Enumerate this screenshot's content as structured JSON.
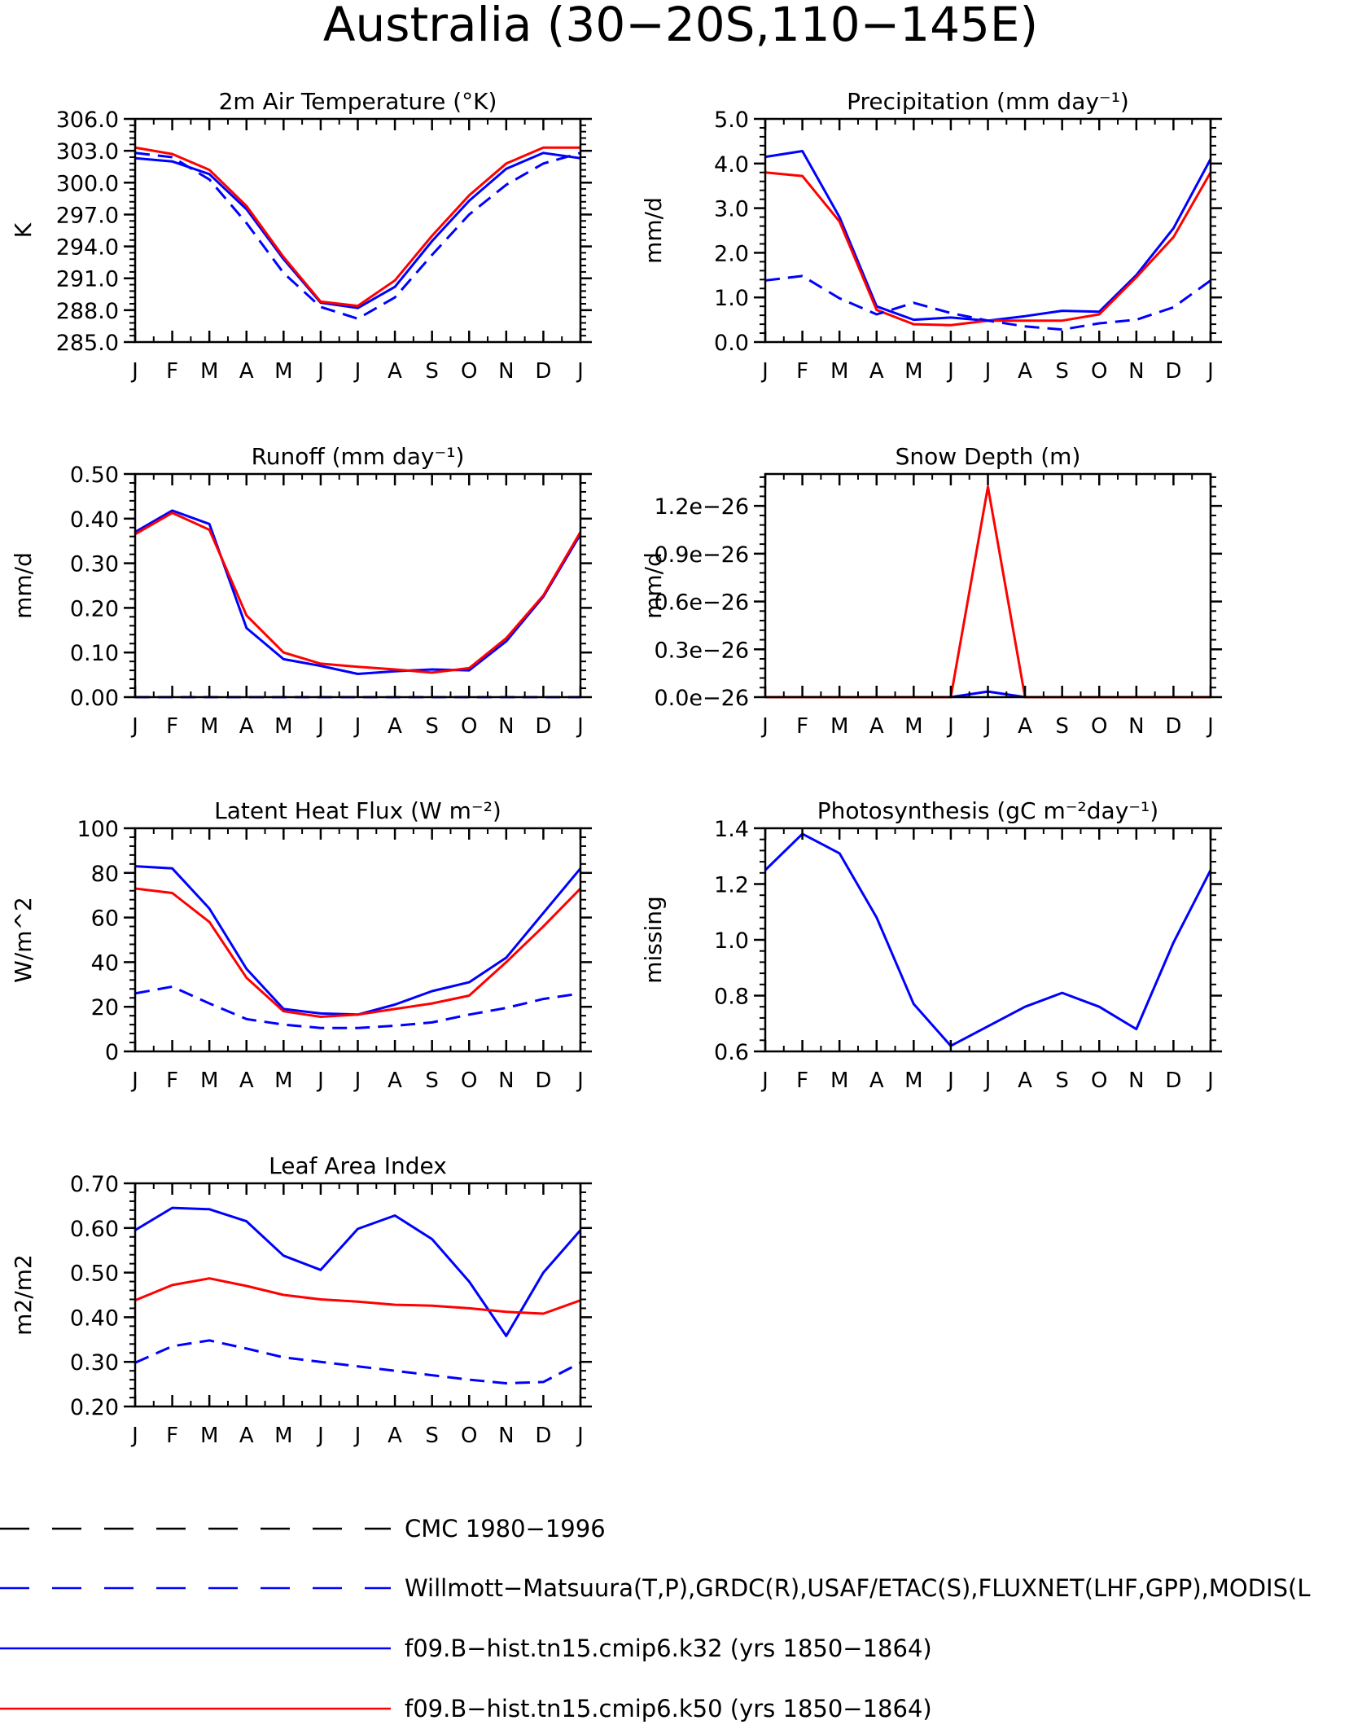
{
  "figure_title": "Australia (30−20S,110−145E)",
  "months": [
    "J",
    "F",
    "M",
    "A",
    "M",
    "J",
    "J",
    "A",
    "S",
    "O",
    "N",
    "D",
    "J"
  ],
  "colors": {
    "k32": "#0000ff",
    "k50": "#ff0000",
    "obs": "#0000ff",
    "cmc": "#000000"
  },
  "legend": [
    {
      "label": "CMC 1980−1996",
      "color": "#000000",
      "dash": true
    },
    {
      "label": "Willmott−Matsuura(T,P),GRDC(R),USAF/ETAC(S),FLUXNET(LHF,GPP),MODIS(L",
      "color": "#0000ff",
      "dash": true
    },
    {
      "label": "f09.B−hist.tn15.cmip6.k32 (yrs 1850−1864)",
      "color": "#0000ff",
      "dash": false
    },
    {
      "label": "f09.B−hist.tn15.cmip6.k50 (yrs 1850−1864)",
      "color": "#ff0000",
      "dash": false
    }
  ],
  "chart_data": [
    {
      "type": "line",
      "title": "2m Air Temperature (°K)",
      "ylabel": "K",
      "ylim": [
        285,
        306
      ],
      "yticks": [
        285,
        288,
        291,
        294,
        297,
        300,
        303,
        306
      ],
      "ytick_labels": [
        "285.0",
        "288.0",
        "291.0",
        "294.0",
        "297.0",
        "300.0",
        "303.0",
        "306.0"
      ],
      "series": [
        {
          "key": "k32",
          "values": [
            302.3,
            302.0,
            300.8,
            297.5,
            292.8,
            288.7,
            288.2,
            290.2,
            294.5,
            298.3,
            301.3,
            302.8,
            302.3
          ]
        },
        {
          "key": "k50",
          "values": [
            303.3,
            302.7,
            301.2,
            297.8,
            293.0,
            288.8,
            288.4,
            290.8,
            295.0,
            298.8,
            301.8,
            303.3,
            303.3
          ]
        },
        {
          "key": "obs",
          "values": [
            302.8,
            302.4,
            300.3,
            296.2,
            291.5,
            288.3,
            287.2,
            289.2,
            293.2,
            297.0,
            299.8,
            301.8,
            302.8
          ]
        }
      ]
    },
    {
      "type": "line",
      "title": "Precipitation (mm day⁻¹)",
      "ylabel": "mm/d",
      "ylim": [
        0,
        5
      ],
      "yticks": [
        0,
        1,
        2,
        3,
        4,
        5
      ],
      "ytick_labels": [
        "0.0",
        "1.0",
        "2.0",
        "3.0",
        "4.0",
        "5.0"
      ],
      "series": [
        {
          "key": "k32",
          "values": [
            4.15,
            4.28,
            2.8,
            0.8,
            0.5,
            0.55,
            0.48,
            0.58,
            0.7,
            0.68,
            1.5,
            2.55,
            4.1
          ]
        },
        {
          "key": "k50",
          "values": [
            3.8,
            3.72,
            2.7,
            0.72,
            0.4,
            0.38,
            0.48,
            0.48,
            0.48,
            0.62,
            1.45,
            2.35,
            3.8
          ]
        },
        {
          "key": "obs",
          "values": [
            1.38,
            1.48,
            0.98,
            0.62,
            0.88,
            0.65,
            0.48,
            0.35,
            0.28,
            0.42,
            0.5,
            0.78,
            1.38
          ]
        }
      ]
    },
    {
      "type": "line",
      "title": "Runoff (mm day⁻¹)",
      "ylabel": "mm/d",
      "ylim": [
        0,
        0.5
      ],
      "yticks": [
        0,
        0.1,
        0.2,
        0.3,
        0.4,
        0.5
      ],
      "ytick_labels": [
        "0.00",
        "0.10",
        "0.20",
        "0.30",
        "0.40",
        "0.50"
      ],
      "series": [
        {
          "key": "k32",
          "values": [
            0.37,
            0.418,
            0.388,
            0.155,
            0.085,
            0.07,
            0.052,
            0.058,
            0.062,
            0.06,
            0.125,
            0.225,
            0.365
          ]
        },
        {
          "key": "k50",
          "values": [
            0.365,
            0.413,
            0.375,
            0.183,
            0.1,
            0.075,
            0.068,
            0.062,
            0.055,
            0.065,
            0.132,
            0.228,
            0.37
          ]
        },
        {
          "key": "obs",
          "values": [
            0,
            0,
            0,
            0,
            0,
            0,
            0,
            0,
            0,
            0,
            0,
            0,
            0
          ]
        }
      ]
    },
    {
      "type": "line",
      "title": "Snow Depth (m)",
      "ylabel": "mm/d",
      "ylim": [
        0,
        1.4
      ],
      "yticks": [
        0,
        0.3,
        0.6,
        0.9,
        1.2
      ],
      "ytick_labels": [
        "0.0e−26",
        "0.3e−26",
        "0.6e−26",
        "0.9e−26",
        "1.2e−26"
      ],
      "series": [
        {
          "key": "k32",
          "values": [
            0,
            0,
            0,
            0,
            0,
            0,
            0.035,
            0,
            0,
            0,
            0,
            0,
            0
          ]
        },
        {
          "key": "k50",
          "values": [
            0,
            0,
            0,
            0,
            0,
            0,
            1.32,
            0,
            0,
            0,
            0,
            0,
            0
          ]
        }
      ]
    },
    {
      "type": "line",
      "title": "Latent Heat Flux (W m⁻²)",
      "ylabel": "W/m^2",
      "ylim": [
        0,
        100
      ],
      "yticks": [
        0,
        20,
        40,
        60,
        80,
        100
      ],
      "ytick_labels": [
        "0",
        "20",
        "40",
        "60",
        "80",
        "100"
      ],
      "series": [
        {
          "key": "k32",
          "values": [
            83,
            82,
            64,
            37,
            19,
            17,
            16.5,
            21,
            27,
            31,
            42,
            62,
            82
          ]
        },
        {
          "key": "k50",
          "values": [
            73,
            71,
            58,
            33,
            18,
            15.5,
            16.5,
            19,
            21.5,
            25,
            40,
            56,
            73
          ]
        },
        {
          "key": "obs",
          "values": [
            26,
            29,
            21.5,
            14.5,
            12,
            10.5,
            10.5,
            11.5,
            13,
            16.5,
            19.5,
            23.5,
            26
          ]
        }
      ]
    },
    {
      "type": "line",
      "title": "Photosynthesis (gC m⁻²day⁻¹)",
      "ylabel": "missing",
      "ylim": [
        0.6,
        1.4
      ],
      "yticks": [
        0.6,
        0.8,
        1.0,
        1.2,
        1.4
      ],
      "ytick_labels": [
        "0.6",
        "0.8",
        "1.0",
        "1.2",
        "1.4"
      ],
      "series": [
        {
          "key": "k32",
          "values": [
            1.25,
            1.38,
            1.31,
            1.08,
            0.77,
            0.62,
            0.69,
            0.76,
            0.81,
            0.76,
            0.68,
            0.99,
            1.25
          ]
        }
      ]
    },
    {
      "type": "line",
      "title": "Leaf Area Index",
      "ylabel": "m2/m2",
      "ylim": [
        0.2,
        0.7
      ],
      "yticks": [
        0.2,
        0.3,
        0.4,
        0.5,
        0.6,
        0.7
      ],
      "ytick_labels": [
        "0.20",
        "0.30",
        "0.40",
        "0.50",
        "0.60",
        "0.70"
      ],
      "series": [
        {
          "key": "k32",
          "values": [
            0.595,
            0.645,
            0.642,
            0.615,
            0.538,
            0.506,
            0.598,
            0.628,
            0.575,
            0.48,
            0.358,
            0.5,
            0.595
          ]
        },
        {
          "key": "k50",
          "values": [
            0.438,
            0.472,
            0.487,
            0.47,
            0.45,
            0.44,
            0.435,
            0.428,
            0.426,
            0.42,
            0.412,
            0.408,
            0.438
          ]
        },
        {
          "key": "obs",
          "values": [
            0.298,
            0.335,
            0.348,
            0.33,
            0.31,
            0.3,
            0.29,
            0.28,
            0.27,
            0.26,
            0.252,
            0.255,
            0.298
          ]
        }
      ]
    }
  ]
}
